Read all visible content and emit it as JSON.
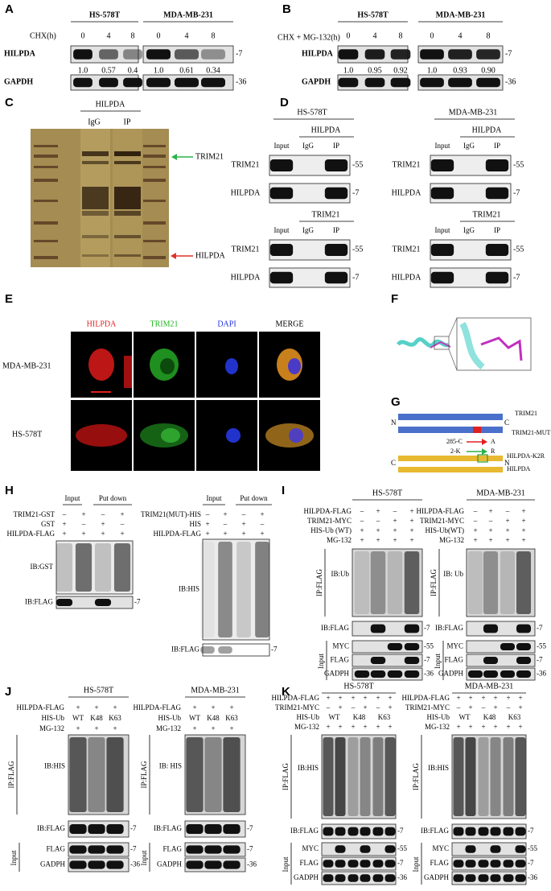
{
  "panel_a": {
    "letter": "A",
    "cell_lines": [
      "HS-578T",
      "MDA-MB-231"
    ],
    "treatment": "CHX(h)",
    "times": [
      [
        "0",
        "4",
        "8"
      ],
      [
        "0",
        "4",
        "8"
      ]
    ],
    "target": "HILPDA",
    "ratios": [
      [
        "1.0",
        "0.57",
        "0.4"
      ],
      [
        "1.0",
        "0.61",
        "0.34"
      ]
    ],
    "loading": "GAPDH",
    "markers": [
      "-7",
      "-36"
    ]
  },
  "panel_b": {
    "letter": "B",
    "cell_lines": [
      "HS-578T",
      "MDA-MB-231"
    ],
    "treatment": "CHX + MG-132(h)",
    "times": [
      [
        "0",
        "4",
        "8"
      ],
      [
        "0",
        "4",
        "8"
      ]
    ],
    "target": "HILPDA",
    "ratios": [
      [
        "1.0",
        "0.95",
        "0.92"
      ],
      [
        "1.0",
        "0.93",
        "0.90"
      ]
    ],
    "loading": "GAPDH",
    "markers": [
      "-7",
      "-36"
    ]
  },
  "panel_c": {
    "letter": "C",
    "antibody": "HILPDA",
    "lanes": [
      "IgG",
      "IP"
    ],
    "arrows": [
      "TRIM21",
      "HILPDA"
    ]
  },
  "panel_d": {
    "letter": "D",
    "panels": [
      {
        "cell_line": "HS-578T",
        "blocks": [
          {
            "ip": "HILPDA",
            "lanes": [
              "Input",
              "IgG",
              "IP"
            ],
            "rows": [
              "TRIM21",
              "HILPDA"
            ],
            "markers": [
              "-55",
              "-7"
            ]
          },
          {
            "ip": "TRIM21",
            "lanes": [
              "Input",
              "IgG",
              "IP"
            ],
            "rows": [
              "TRIM21",
              "HILPDA"
            ],
            "markers": [
              "-55",
              "-7"
            ]
          }
        ]
      },
      {
        "cell_line": "MDA-MB-231",
        "blocks": [
          {
            "ip": "HILPDA",
            "lanes": [
              "Input",
              "IgG",
              "IP"
            ],
            "rows": [
              "TRIM21",
              "HILPDA"
            ],
            "markers": [
              "-55",
              "-7"
            ]
          },
          {
            "ip": "TRIM21",
            "lanes": [
              "Input",
              "IgG",
              "IP"
            ],
            "rows": [
              "TRIM21",
              "HILPDA"
            ],
            "markers": [
              "-55",
              "-7"
            ]
          }
        ]
      }
    ]
  },
  "panel_e": {
    "letter": "E",
    "channels": [
      "HILPDA",
      "TRIM21",
      "DAPI",
      "MERGE"
    ],
    "cell_lines": [
      "MDA-MB-231",
      "HS-578T"
    ]
  },
  "panel_f": {
    "letter": "F"
  },
  "panel_g": {
    "letter": "G",
    "trim21_constructs": [
      "TRIM21",
      "TRIM21-MUT"
    ],
    "trim21_termini": [
      "N",
      "C"
    ],
    "mutations": [
      {
        "site": "285-C",
        "to": "A"
      },
      {
        "site": "2-K",
        "to": "R"
      }
    ],
    "hilpda_constructs": [
      "HILPDA-K2R",
      "HILPDA"
    ],
    "hilpda_termini": [
      "C",
      "N"
    ]
  },
  "panel_h": {
    "letter": "H",
    "panels": [
      {
        "groups": [
          "Input",
          "Put down"
        ],
        "rows": [
          {
            "name": "TRIM21-GST",
            "signs": [
              "–",
              "+",
              "–",
              "+"
            ]
          },
          {
            "name": "GST",
            "signs": [
              "+",
              "–",
              "+",
              "–"
            ]
          },
          {
            "name": "HILPDA-FLAG",
            "signs": [
              "+",
              "+",
              "+",
              "+"
            ]
          }
        ],
        "blots": [
          "IB:GST",
          "IB:FLAG"
        ],
        "marker": "-7"
      },
      {
        "groups": [
          "Input",
          "Put down"
        ],
        "rows": [
          {
            "name": "TRIM21(MUT)-HIS",
            "signs": [
              "–",
              "+",
              "–",
              "+"
            ]
          },
          {
            "name": "HIS",
            "signs": [
              "+",
              "–",
              "+",
              "–"
            ]
          },
          {
            "name": "HILPDA-FLAG",
            "signs": [
              "+",
              "+",
              "+",
              "+"
            ]
          }
        ],
        "blots": [
          "IB:HIS",
          "IB:FLAG"
        ],
        "marker": "-7"
      }
    ]
  },
  "panel_i": {
    "letter": "I",
    "panels": [
      {
        "cell_line": "HS-578T",
        "rows": [
          {
            "name": "HILPDA-FLAG",
            "signs": [
              "–",
              "+",
              "–",
              "+"
            ]
          },
          {
            "name": "TRIM21-MYC",
            "signs": [
              "–",
              "–",
              "+",
              "+"
            ]
          },
          {
            "name": "HIS-Ub (WT)",
            "signs": [
              "+",
              "+",
              "+",
              "+"
            ]
          },
          {
            "name": "MG-132",
            "signs": [
              "+",
              "+",
              "+",
              "+"
            ]
          }
        ],
        "ip": "IP:FLAG",
        "ib": "IB:Ub",
        "ib_flag": "IB:FLAG",
        "input": "Input",
        "input_rows": [
          "MYC",
          "FLAG",
          "GADPH"
        ],
        "markers": [
          "-7",
          "-55",
          "-7",
          "-36"
        ]
      },
      {
        "cell_line": "MDA-MB-231",
        "rows": [
          {
            "name": "HILPDA-FLAG",
            "signs": [
              "–",
              "+",
              "–",
              "+"
            ]
          },
          {
            "name": "TRIM21-MYC",
            "signs": [
              "–",
              "–",
              "+",
              "+"
            ]
          },
          {
            "name": "HIS-Ub(WT)",
            "signs": [
              "+",
              "+",
              "+",
              "+"
            ]
          },
          {
            "name": "MG-132",
            "signs": [
              "+",
              "+",
              "+",
              "+"
            ]
          }
        ],
        "ip": "IP:FLAG",
        "ib": "IB: Ub",
        "ib_flag": "IB:FLAG",
        "input": "Input",
        "input_rows": [
          "MYC",
          "FLAG",
          "GADPH"
        ],
        "markers": [
          "-7",
          "-55",
          "-7",
          "-36"
        ]
      }
    ]
  },
  "panel_j": {
    "letter": "J",
    "panels": [
      {
        "cell_line": "HS-578T",
        "rows": [
          {
            "name": "HILPDA-FLAG",
            "signs": [
              "+",
              "+",
              "+"
            ]
          },
          {
            "name": "HIS-Ub",
            "signs": [
              "WT",
              "K48",
              "K63"
            ]
          },
          {
            "name": "MG-132",
            "signs": [
              "+",
              "+",
              "+"
            ]
          }
        ],
        "ip": "IP:FLAG",
        "ib": "IB:HIS",
        "ib_flag": "IB:FLAG",
        "input": "Input",
        "input_rows": [
          "FLAG",
          "GADPH"
        ],
        "markers": [
          "-7",
          "-7",
          "-36"
        ]
      },
      {
        "cell_line": "MDA-MB-231",
        "rows": [
          {
            "name": "HILPDA-FLAG",
            "signs": [
              "+",
              "+",
              "+"
            ]
          },
          {
            "name": "HIS-Ub",
            "signs": [
              "WT",
              "K48",
              "K63"
            ]
          },
          {
            "name": "MG-132",
            "signs": [
              "+",
              "+",
              "+"
            ]
          }
        ],
        "ip": "IP:FLAG",
        "ib": "IB: HIS",
        "ib_flag": "IB:FLAG",
        "input": "Input",
        "input_rows": [
          "FLAG",
          "GADPH"
        ],
        "markers": [
          "-7",
          "-7",
          "-36"
        ]
      }
    ]
  },
  "panel_k": {
    "letter": "K",
    "panels": [
      {
        "cell_line": "HS-578T",
        "rows": [
          {
            "name": "HILPDA-FLAG",
            "signs": [
              "+",
              "+",
              "+",
              "+",
              "+",
              "+"
            ]
          },
          {
            "name": "TRIM21-MYC",
            "signs": [
              "–",
              "+",
              "–",
              "+",
              "–",
              "+"
            ]
          },
          {
            "name": "HIS-Ub",
            "signs": [
              "WT",
              "K48",
              "K63"
            ]
          },
          {
            "name": "MG-132",
            "signs": [
              "+",
              "+",
              "+",
              "+",
              "+",
              "+"
            ]
          }
        ],
        "ip": "IP:FLAG",
        "ib": "IB:HIS",
        "ib_flag": "IB:FLAG",
        "input": "Input",
        "input_rows": [
          "MYC",
          "FLAG",
          "GADPH"
        ],
        "markers": [
          "-7",
          "-55",
          "-7",
          "-36"
        ]
      },
      {
        "cell_line": "MDA-MB-231",
        "rows": [
          {
            "name": "HILPDA-FLAG",
            "signs": [
              "+",
              "+",
              "+",
              "+",
              "+",
              "+"
            ]
          },
          {
            "name": "TRIM21-MYC",
            "signs": [
              "–",
              "+",
              "–",
              "+",
              "–",
              "+"
            ]
          },
          {
            "name": "HIS-Ub",
            "signs": [
              "WT",
              "K48",
              "K63"
            ]
          },
          {
            "name": "MG-132",
            "signs": [
              "+",
              "+",
              "+",
              "+",
              "+",
              "+"
            ]
          }
        ],
        "ip": "IP:FLAG",
        "ib": "IB:HIS",
        "ib_flag": "IB:FLAG",
        "input": "Input",
        "input_rows": [
          "MYC",
          "FLAG",
          "GADPH"
        ],
        "markers": [
          "-7",
          "-55",
          "-7",
          "-36"
        ]
      }
    ]
  }
}
